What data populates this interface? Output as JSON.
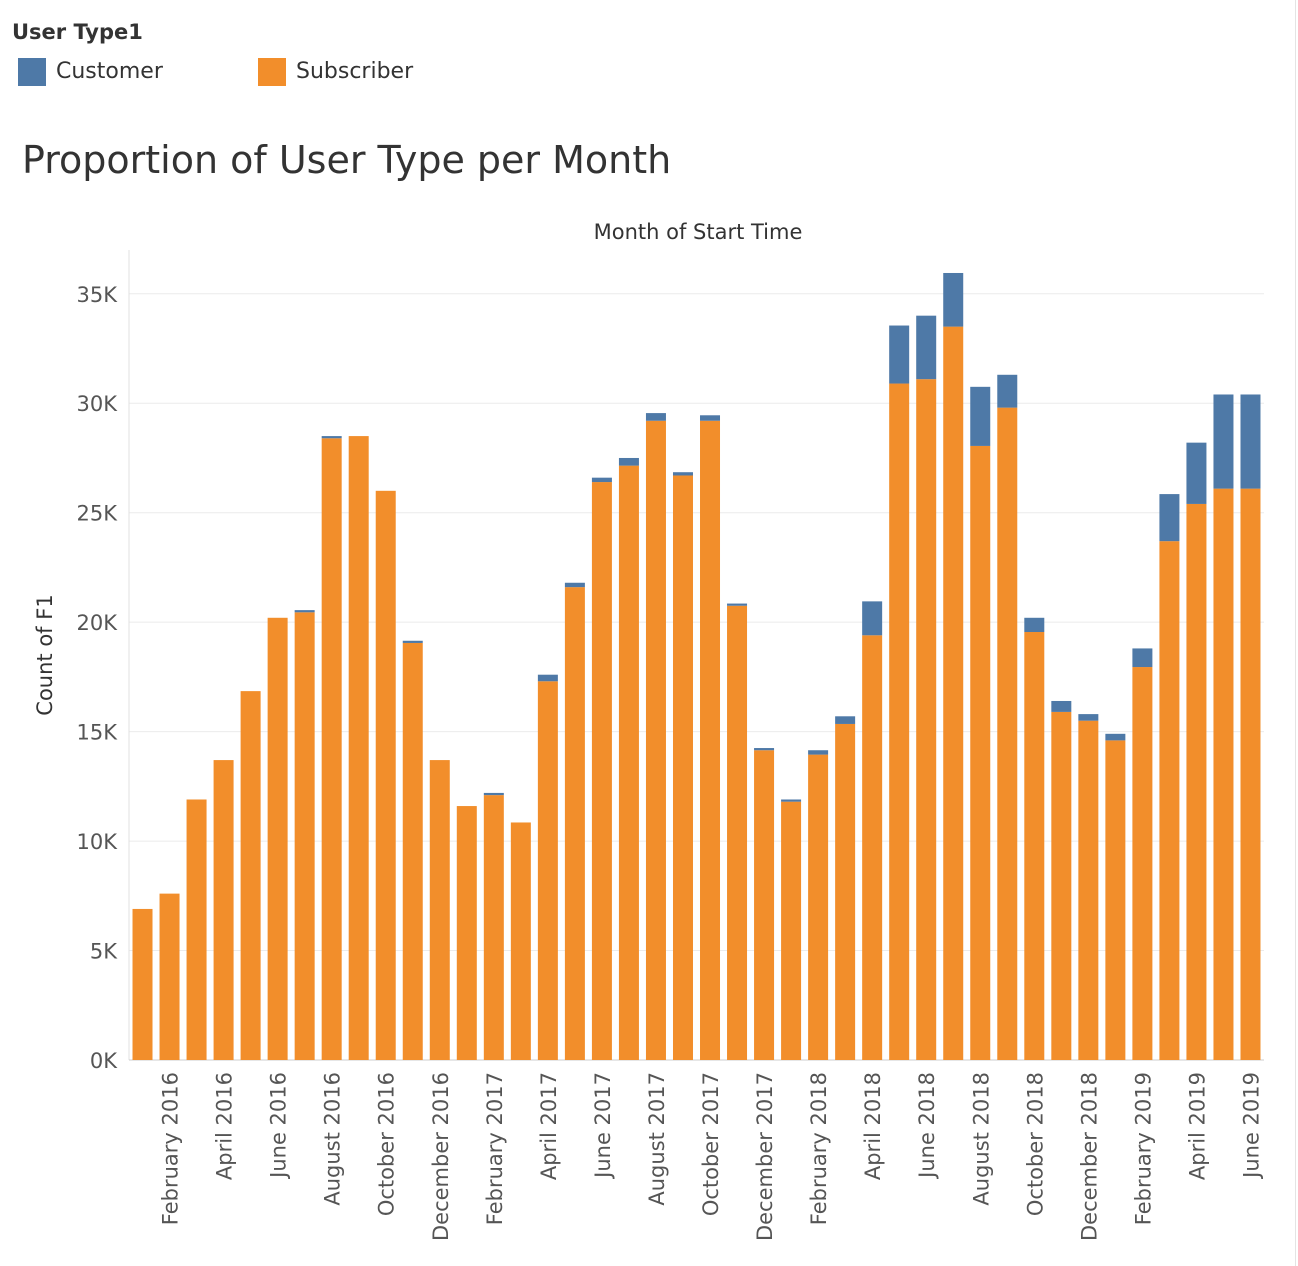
{
  "legend": {
    "title": "User Type1",
    "items": [
      {
        "label": "Customer",
        "color": "#4e79a7"
      },
      {
        "label": "Subscriber",
        "color": "#f28e2b"
      }
    ]
  },
  "chart_data": {
    "type": "bar",
    "stacked": true,
    "title": "Proportion of User Type per Month",
    "xlabel": "Month of Start Time",
    "ylabel": "Count of F1",
    "ylim": [
      0,
      37000
    ],
    "yticks": [
      "0K",
      "5K",
      "10K",
      "15K",
      "20K",
      "25K",
      "30K",
      "35K"
    ],
    "ytick_values": [
      0,
      5000,
      10000,
      15000,
      20000,
      25000,
      30000,
      35000
    ],
    "grid": true,
    "categories": [
      "January 2016",
      "February 2016",
      "March 2016",
      "April 2016",
      "May 2016",
      "June 2016",
      "July 2016",
      "August 2016",
      "September 2016",
      "October 2016",
      "November 2016",
      "December 2016",
      "January 2017",
      "February 2017",
      "March 2017",
      "April 2017",
      "May 2017",
      "June 2017",
      "July 2017",
      "August 2017",
      "September 2017",
      "October 2017",
      "November 2017",
      "December 2017",
      "January 2018",
      "February 2018",
      "March 2018",
      "April 2018",
      "May 2018",
      "June 2018",
      "July 2018",
      "August 2018",
      "September 2018",
      "October 2018",
      "November 2018",
      "December 2018",
      "January 2019",
      "February 2019",
      "March 2019",
      "April 2019",
      "May 2019",
      "June 2019"
    ],
    "tick_labels": [
      "February 2016",
      "April 2016",
      "June 2016",
      "August 2016",
      "October 2016",
      "December 2016",
      "February 2017",
      "April 2017",
      "June 2017",
      "August 2017",
      "October 2017",
      "December 2017",
      "February 2018",
      "April 2018",
      "June 2018",
      "August 2018",
      "October 2018",
      "December 2018",
      "February 2019",
      "April 2019",
      "June 2019"
    ],
    "series": [
      {
        "name": "Subscriber",
        "color": "#f28e2b",
        "values": [
          6900,
          7600,
          11900,
          13700,
          16850,
          20200,
          20450,
          28400,
          28500,
          26000,
          19050,
          13700,
          11600,
          12100,
          10850,
          17300,
          21600,
          26400,
          27150,
          29200,
          26700,
          29200,
          20750,
          14150,
          11800,
          13950,
          15350,
          19400,
          30900,
          31100,
          33500,
          28050,
          29800,
          19550,
          15900,
          15500,
          14600,
          17950,
          23700,
          25400,
          26100,
          26100
        ]
      },
      {
        "name": "Customer",
        "color": "#4e79a7",
        "values": [
          0,
          0,
          0,
          0,
          0,
          0,
          100,
          100,
          0,
          0,
          100,
          0,
          0,
          100,
          0,
          300,
          200,
          200,
          350,
          350,
          150,
          250,
          100,
          100,
          100,
          200,
          350,
          1550,
          2650,
          2900,
          2450,
          2700,
          1500,
          650,
          500,
          300,
          300,
          850,
          2150,
          2800,
          4300,
          4300
        ]
      }
    ]
  }
}
